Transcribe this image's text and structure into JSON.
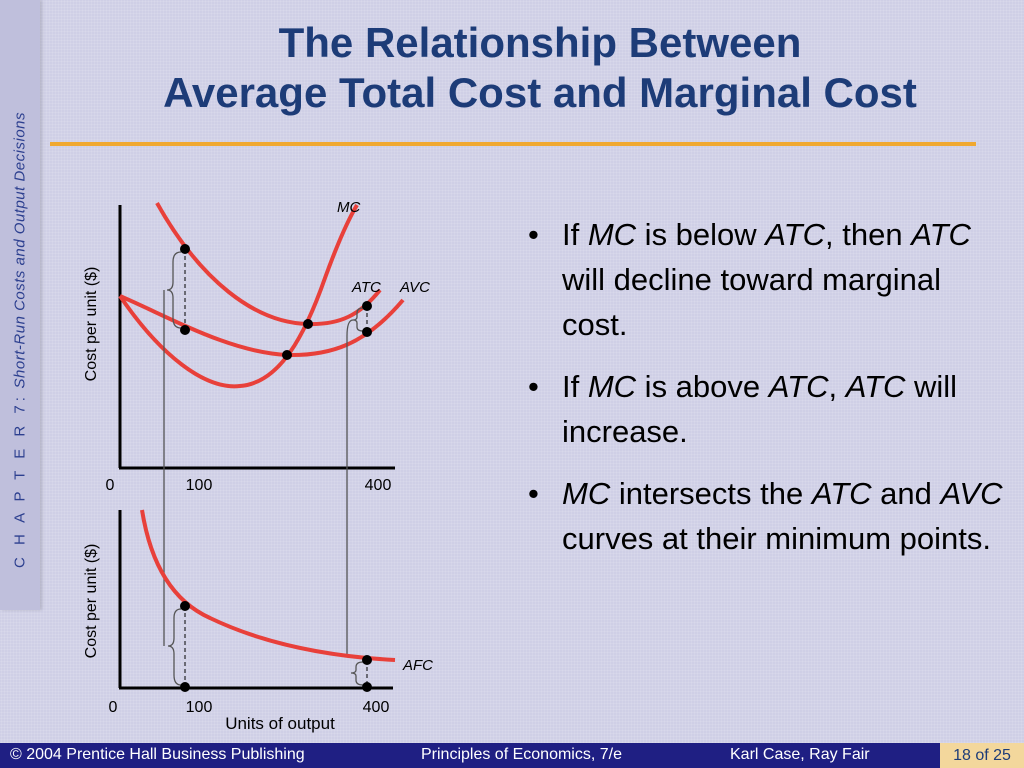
{
  "slide": {
    "title_line1": "The Relationship Between",
    "title_line2": "Average Total Cost and Marginal Cost",
    "side_chapter": "C H A P T E R  7:",
    "side_subtitle": "Short-Run Costs and Output Decisions"
  },
  "charts": {
    "top": {
      "ylabel": "Cost per unit ($)",
      "x_ticks": [
        "0",
        "100",
        "400"
      ],
      "curve_labels": {
        "mc": "MC",
        "atc": "ATC",
        "avc": "AVC"
      }
    },
    "bottom": {
      "ylabel": "Cost per unit ($)",
      "xlabel": "Units of output",
      "x_ticks": [
        "0",
        "100",
        "400"
      ],
      "curve_labels": {
        "afc": "AFC"
      }
    },
    "colors": {
      "curve": "#e8403a",
      "axis": "#000000",
      "bracket": "#555555"
    }
  },
  "bullets": [
    {
      "parts": [
        {
          "t": "If ",
          "i": false
        },
        {
          "t": "MC",
          "i": true
        },
        {
          "t": " is below ",
          "i": false
        },
        {
          "t": "ATC",
          "i": true
        },
        {
          "t": ", then ",
          "i": false
        },
        {
          "t": "ATC",
          "i": true
        },
        {
          "t": " will decline toward marginal cost.",
          "i": false
        }
      ]
    },
    {
      "parts": [
        {
          "t": "If ",
          "i": false
        },
        {
          "t": "MC",
          "i": true
        },
        {
          "t": " is above ",
          "i": false
        },
        {
          "t": "ATC",
          "i": true
        },
        {
          "t": ", ",
          "i": false
        },
        {
          "t": "ATC",
          "i": true
        },
        {
          "t": " will increase.",
          "i": false
        }
      ]
    },
    {
      "parts": [
        {
          "t": "MC",
          "i": true
        },
        {
          "t": " intersects the ",
          "i": false
        },
        {
          "t": "ATC",
          "i": true
        },
        {
          "t": " and ",
          "i": false
        },
        {
          "t": "AVC",
          "i": true
        },
        {
          "t": " curves at their minimum points.",
          "i": false
        }
      ]
    }
  ],
  "bullet_symbol": "•",
  "footer": {
    "publisher": "© 2004 Prentice Hall Business Publishing",
    "book": "Principles of Economics, 7/e",
    "authors": "Karl Case, Ray Fair",
    "page": "18 of 25"
  }
}
